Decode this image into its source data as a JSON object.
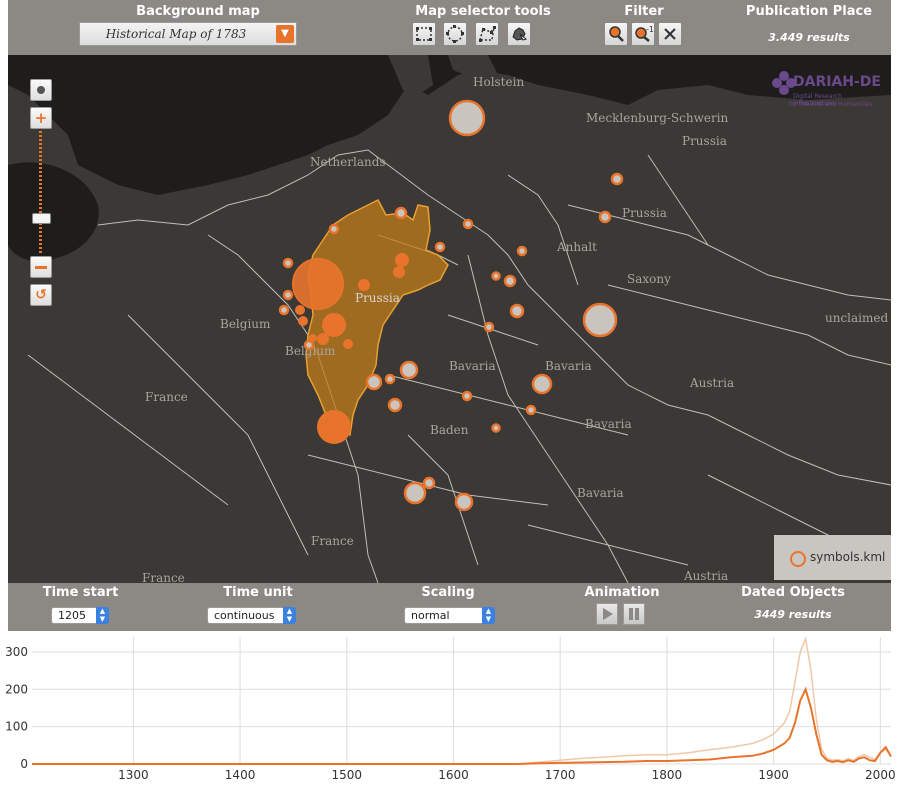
{
  "toolbar": {
    "background_map": {
      "title": "Background map",
      "selected": "Historical Map of 1783"
    },
    "map_selector": {
      "title": "Map selector tools",
      "tools": [
        "rectangle-select-icon",
        "circle-select-icon",
        "polygon-select-icon",
        "country-select-icon"
      ]
    },
    "filter": {
      "title": "Filter",
      "tools": [
        "filter-icon",
        "inverse-filter-icon",
        "cancel-filter-icon"
      ],
      "inverse_label": "-1"
    },
    "publication_place": {
      "title": "Publication Place",
      "results": "3.449 results"
    }
  },
  "map": {
    "logo": {
      "name": "DARIAH-DE",
      "tagline_1": "Digital Research Infrastructure",
      "tagline_2": "for the Arts and Humanities"
    },
    "labels": [
      "Holstein",
      "Mecklenburg-Schwerin",
      "Prussia",
      "Netherlands",
      "Prussia",
      "Anhalt",
      "Saxony",
      "Prussia",
      "Belgium",
      "Belgium",
      "unclaimed",
      "France",
      "Bavaria",
      "Bavaria",
      "Austria",
      "Baden",
      "Bavaria",
      "Bavaria",
      "France",
      "France",
      "Austria"
    ],
    "legend": {
      "label": "symbols.kml"
    },
    "colors": {
      "background": "#3b3835",
      "highlight": "#c27c1a",
      "symbol": "#e8742c",
      "symbol_fill": "#c9c4be"
    }
  },
  "timebar": {
    "time_start": {
      "title": "Time start",
      "value": "1205"
    },
    "time_unit": {
      "title": "Time unit",
      "value": "continuous"
    },
    "scaling": {
      "title": "Scaling",
      "value": "normal"
    },
    "animation": {
      "title": "Animation",
      "controls": [
        "play-icon",
        "pause-icon"
      ]
    },
    "dated_objects": {
      "title": "Dated Objects",
      "results": "3449 results"
    }
  },
  "chart_data": {
    "type": "line",
    "x_ticks": [
      "1300",
      "1400",
      "1500",
      "1600",
      "1700",
      "1800",
      "1900",
      "2000"
    ],
    "y_ticks": [
      "0",
      "100",
      "200",
      "300"
    ],
    "xlim": [
      1205,
      2010
    ],
    "ylim": [
      0,
      340
    ],
    "grid": true,
    "series": [
      {
        "x": [
          1205,
          1660,
          1680,
          1700,
          1720,
          1740,
          1760,
          1780,
          1800,
          1820,
          1840,
          1860,
          1880,
          1890,
          1900,
          1910,
          1915,
          1920,
          1925,
          1930,
          1935,
          1940,
          1945,
          1950,
          1955,
          1960,
          1965,
          1970,
          1975,
          1980,
          1985,
          1990,
          1995,
          2000,
          2005,
          2010
        ],
        "values": [
          0,
          0,
          5,
          10,
          15,
          18,
          22,
          25,
          25,
          30,
          38,
          45,
          55,
          65,
          80,
          110,
          140,
          220,
          300,
          335,
          250,
          120,
          40,
          15,
          10,
          12,
          8,
          15,
          10,
          20,
          25,
          18,
          12,
          30,
          40,
          20
        ]
      },
      {
        "x": [
          1205,
          1660,
          1680,
          1700,
          1720,
          1740,
          1760,
          1780,
          1800,
          1820,
          1840,
          1860,
          1880,
          1890,
          1900,
          1910,
          1915,
          1920,
          1925,
          1930,
          1935,
          1940,
          1945,
          1950,
          1955,
          1960,
          1965,
          1970,
          1975,
          1980,
          1985,
          1990,
          1995,
          2000,
          2005,
          2010
        ],
        "values": [
          0,
          0,
          2,
          3,
          4,
          5,
          6,
          8,
          8,
          10,
          12,
          18,
          22,
          28,
          38,
          55,
          70,
          110,
          170,
          200,
          150,
          80,
          25,
          10,
          6,
          8,
          5,
          10,
          6,
          15,
          18,
          10,
          8,
          30,
          45,
          20
        ]
      }
    ]
  }
}
